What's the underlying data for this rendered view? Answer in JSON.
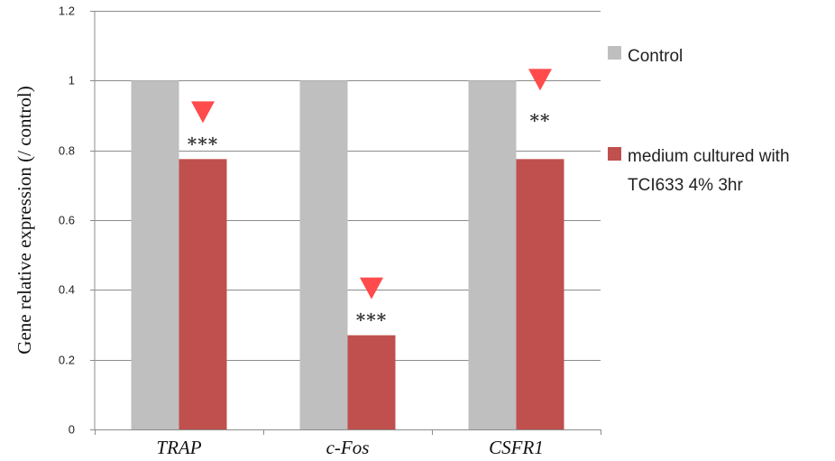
{
  "chart_data": {
    "type": "bar",
    "title": "",
    "xlabel": "",
    "ylabel": "Gene relative expression (/ control)",
    "ylim": [
      0,
      1.2
    ],
    "yticks": [
      "0",
      "0.2",
      "0.4",
      "0.6",
      "0.8",
      "1",
      "1.2"
    ],
    "categories": [
      "TRAP",
      "c-Fos",
      "CSFR1"
    ],
    "series": [
      {
        "name": "Control",
        "values": [
          1.0,
          1.0,
          1.0
        ],
        "color": "#bfbfbf"
      },
      {
        "name": "medium cultured with TCI633 4% 3hr",
        "values": [
          0.775,
          0.27,
          0.775
        ],
        "color": "#c0504d"
      }
    ],
    "annotations": {
      "significance": [
        "***",
        "***",
        "**"
      ],
      "arrow_color": "#ff4b4b",
      "arrow_icon": "down-triangle-icon"
    },
    "grid": true,
    "legend": "right",
    "legend_lines": [
      [
        "Control"
      ],
      [
        "medium cultured with",
        "TCI633 4% 3hr"
      ]
    ]
  }
}
